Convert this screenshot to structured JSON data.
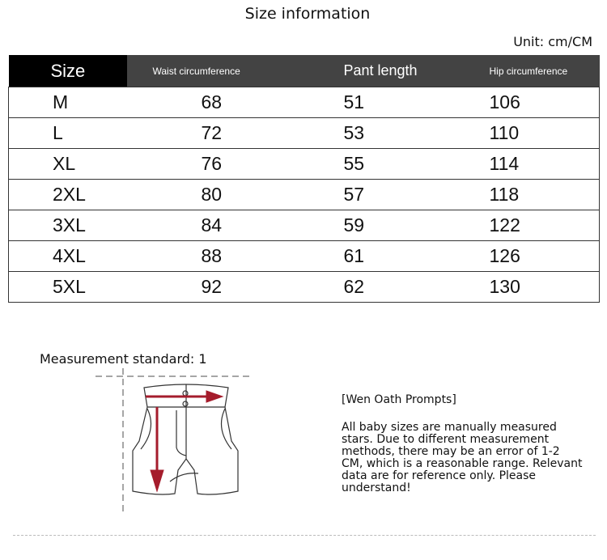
{
  "title": "Size information",
  "unit": "Unit: cm/CM",
  "table": {
    "headers": [
      "Size",
      "Waist circumference",
      "Pant length",
      "Hip circumference"
    ],
    "rows": [
      [
        "M",
        "68",
        "51",
        "106"
      ],
      [
        "L",
        "72",
        "53",
        "110"
      ],
      [
        "XL",
        "76",
        "55",
        "114"
      ],
      [
        "2XL",
        "80",
        "57",
        "118"
      ],
      [
        "3XL",
        "84",
        "59",
        "122"
      ],
      [
        "4XL",
        "88",
        "61",
        "126"
      ],
      [
        "5XL",
        "92",
        "62",
        "130"
      ]
    ]
  },
  "measurement_label": "Measurement standard: 1",
  "tips": {
    "title": "[Wen Oath Prompts]",
    "body": "All baby sizes are manually measured stars. Due to different measurement methods, there may be an error of 1-2 CM, which is a reasonable range. Relevant data are for reference only. Please understand!"
  },
  "colors": {
    "header_dark": "#000000",
    "header_gray": "#434343",
    "arrow": "#a51c2c"
  }
}
